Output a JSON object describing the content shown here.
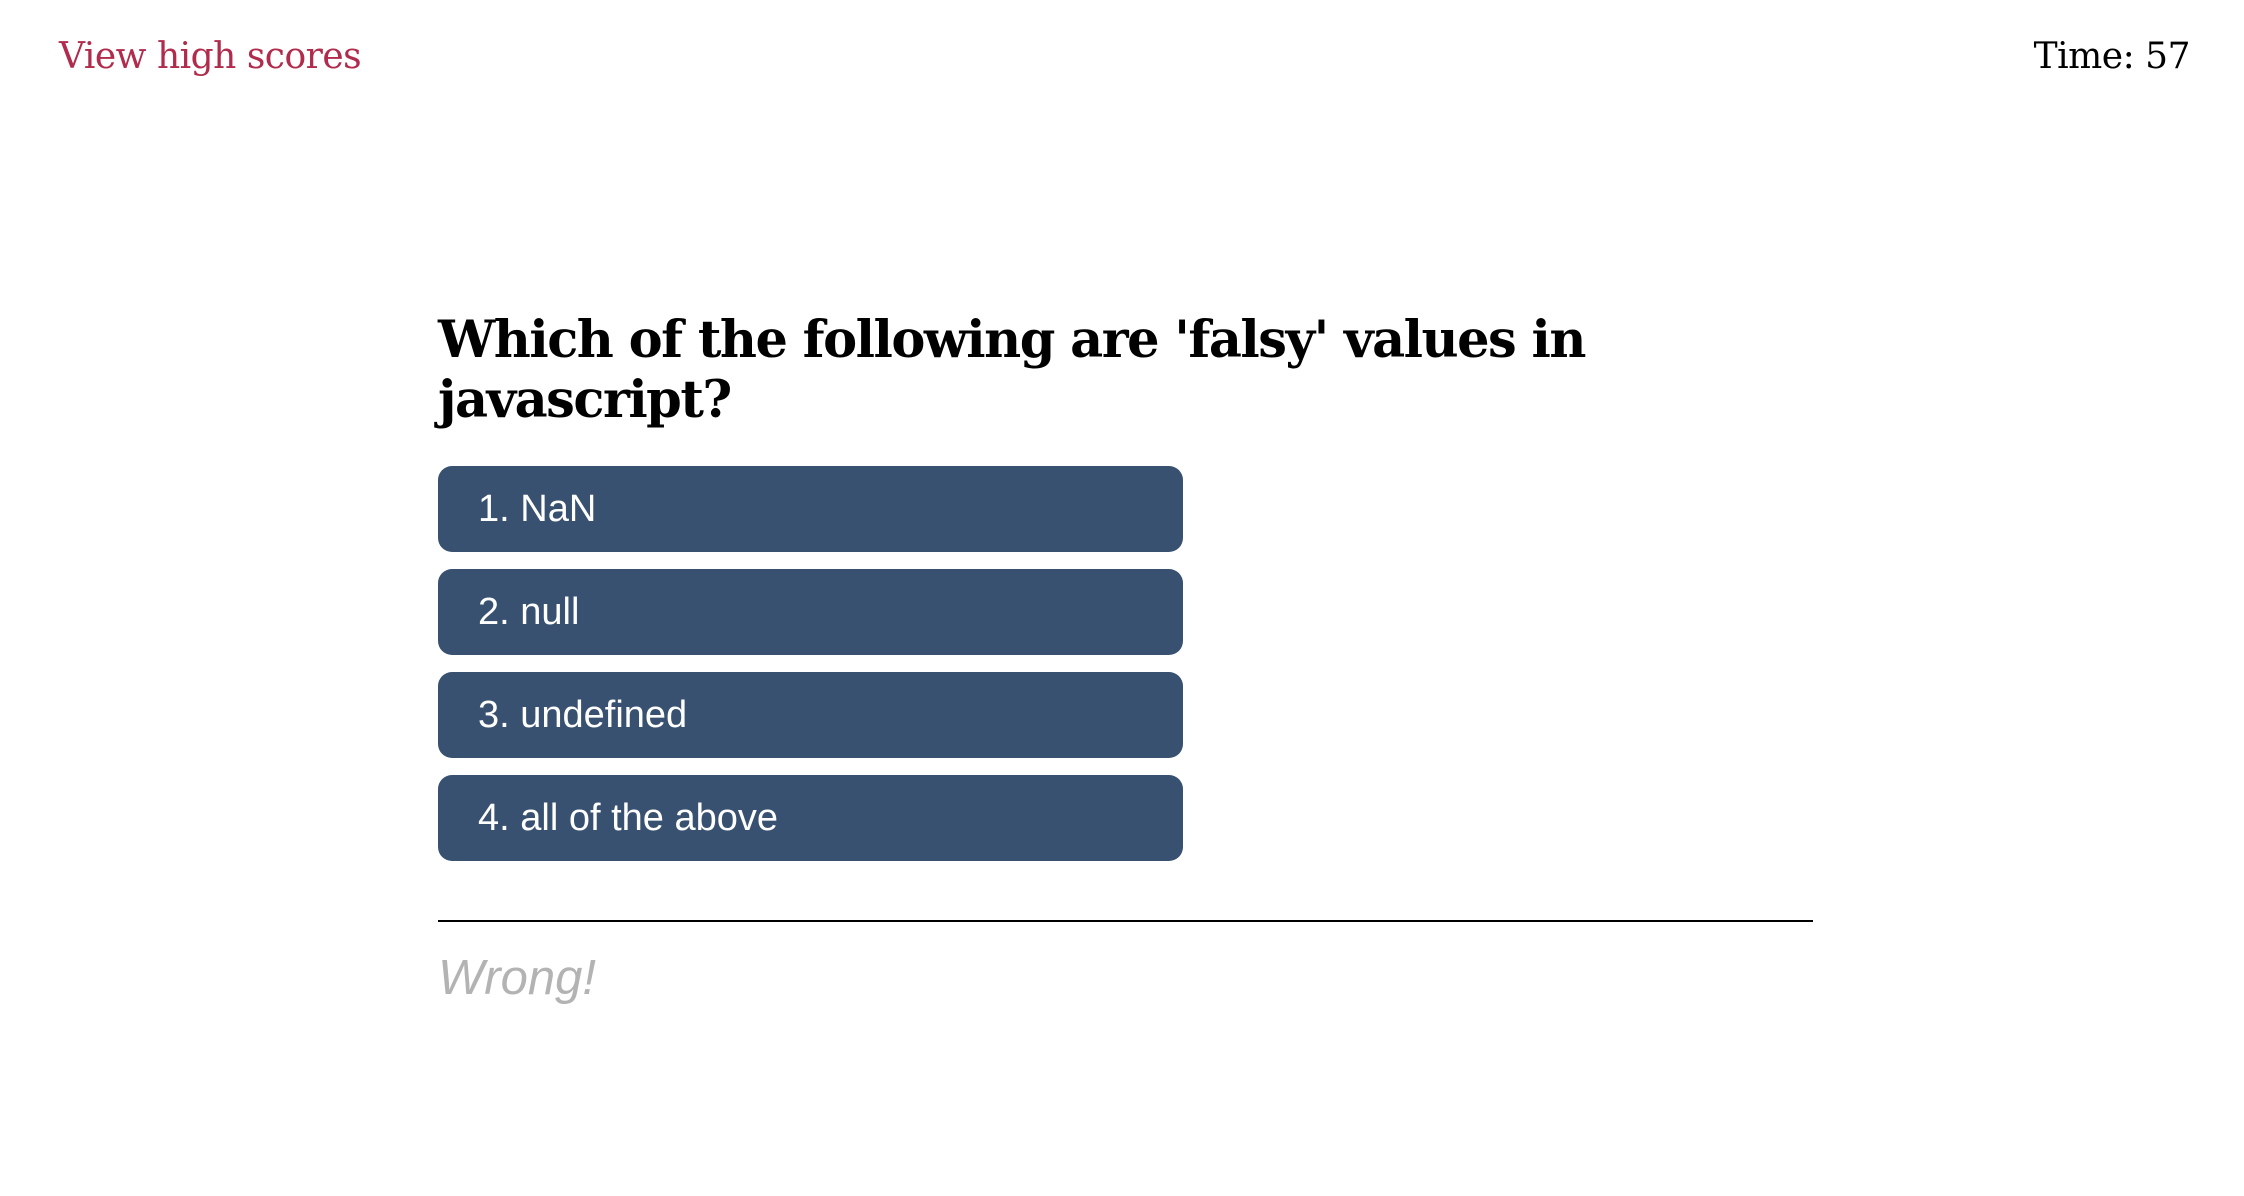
{
  "header": {
    "high_scores_label": "View high scores",
    "timer_text": "Time: 57"
  },
  "quiz": {
    "question": "Which of the following are 'falsy' values in javascript?",
    "choices": [
      {
        "label": "1. NaN"
      },
      {
        "label": "2. null"
      },
      {
        "label": "3. undefined"
      },
      {
        "label": "4. all of the above"
      }
    ],
    "feedback": "Wrong!"
  },
  "colors": {
    "accent_link": "#b12b4c",
    "choice_bg": "#385170",
    "feedback_text": "#b3b3b3"
  }
}
